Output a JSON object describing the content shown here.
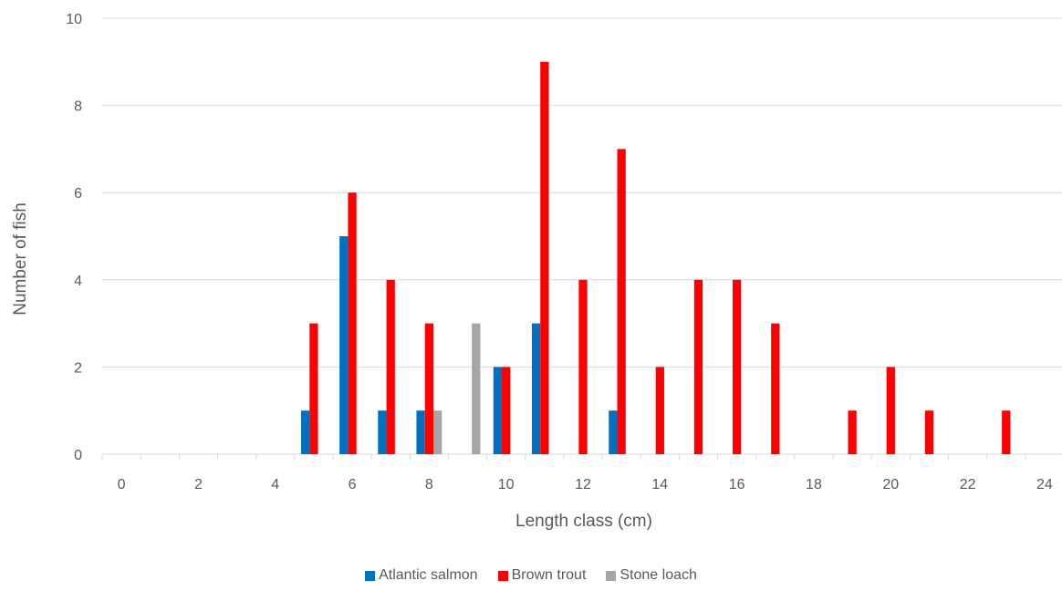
{
  "chart_data": {
    "type": "bar",
    "xlabel": "Length class (cm)",
    "ylabel": "Number of fish",
    "xlim": [
      -0.5,
      24.5
    ],
    "ylim": [
      0,
      10
    ],
    "x_ticks": [
      0,
      2,
      4,
      6,
      8,
      10,
      12,
      14,
      16,
      18,
      20,
      22,
      24
    ],
    "y_ticks": [
      0,
      2,
      4,
      6,
      8,
      10
    ],
    "grid": true,
    "legend_position": "bottom",
    "categories": [
      0,
      1,
      2,
      3,
      4,
      5,
      6,
      7,
      8,
      9,
      10,
      11,
      12,
      13,
      14,
      15,
      16,
      17,
      18,
      19,
      20,
      21,
      22,
      23,
      24
    ],
    "series": [
      {
        "name": "Atlantic salmon",
        "color": "#0070c0",
        "values": [
          0,
          0,
          0,
          0,
          0,
          1,
          5,
          1,
          1,
          0,
          2,
          3,
          0,
          1,
          0,
          0,
          0,
          0,
          0,
          0,
          0,
          0,
          0,
          0,
          0
        ]
      },
      {
        "name": "Brown trout",
        "color": "#ff0000",
        "values": [
          0,
          0,
          0,
          0,
          0,
          3,
          6,
          4,
          3,
          0,
          2,
          9,
          4,
          7,
          2,
          4,
          4,
          3,
          0,
          1,
          2,
          1,
          0,
          1,
          0
        ]
      },
      {
        "name": "Stone loach",
        "color": "#a6a6a6",
        "values": [
          0,
          0,
          0,
          0,
          0,
          0,
          0,
          0,
          1,
          3,
          0,
          0,
          0,
          0,
          0,
          0,
          0,
          0,
          0,
          0,
          0,
          0,
          0,
          0,
          0
        ]
      }
    ]
  }
}
